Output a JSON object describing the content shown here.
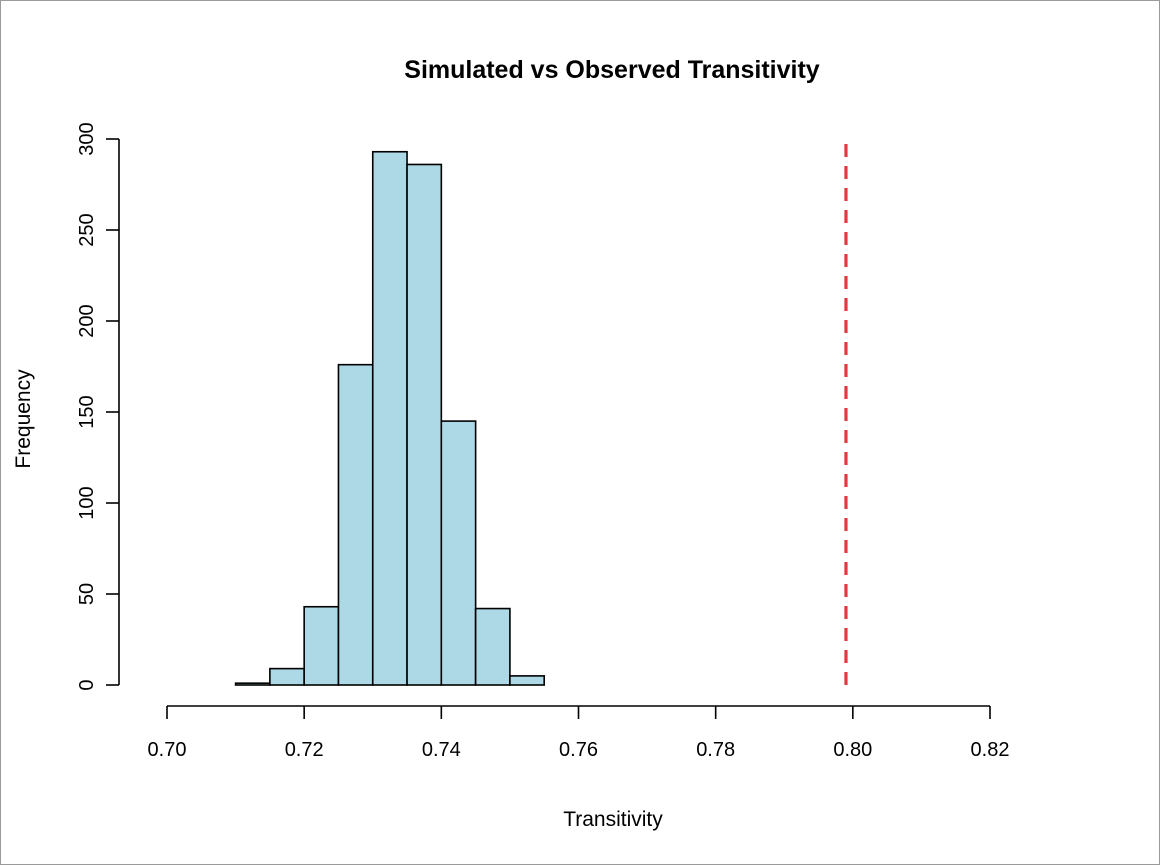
{
  "chart_data": {
    "type": "histogram",
    "title": "Simulated vs Observed Transitivity",
    "xlabel": "Transitivity",
    "ylabel": "Frequency",
    "xlim": [
      0.7,
      0.82
    ],
    "ylim": [
      0,
      300
    ],
    "x_ticks": [
      "0.70",
      "0.72",
      "0.74",
      "0.76",
      "0.78",
      "0.80",
      "0.82"
    ],
    "x_tick_values": [
      0.7,
      0.72,
      0.74,
      0.76,
      0.78,
      0.8,
      0.82
    ],
    "y_ticks": [
      "0",
      "50",
      "100",
      "150",
      "200",
      "250",
      "300"
    ],
    "y_tick_values": [
      0,
      50,
      100,
      150,
      200,
      250,
      300
    ],
    "bins": [
      {
        "start": 0.71,
        "end": 0.715,
        "count": 1
      },
      {
        "start": 0.715,
        "end": 0.72,
        "count": 9
      },
      {
        "start": 0.72,
        "end": 0.725,
        "count": 43
      },
      {
        "start": 0.725,
        "end": 0.73,
        "count": 176
      },
      {
        "start": 0.73,
        "end": 0.735,
        "count": 293
      },
      {
        "start": 0.735,
        "end": 0.74,
        "count": 286
      },
      {
        "start": 0.74,
        "end": 0.745,
        "count": 145
      },
      {
        "start": 0.745,
        "end": 0.75,
        "count": 42
      },
      {
        "start": 0.75,
        "end": 0.755,
        "count": 5
      }
    ],
    "bar_color": "#ADD8E6",
    "observed_value": 0.799,
    "observed_line_color": "#E0393E",
    "observed_line_style": "dashed",
    "grid": false,
    "legend": "none"
  }
}
